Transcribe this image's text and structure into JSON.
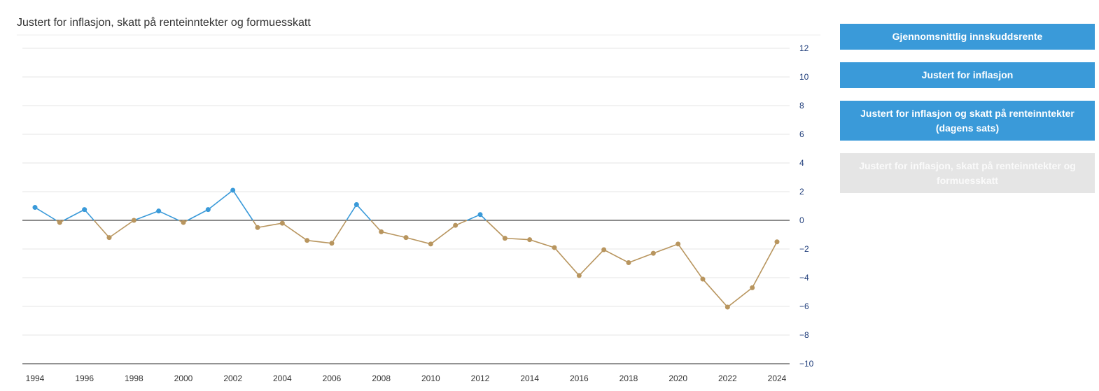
{
  "chart_title": "Justert for inflasjon, skatt på renteinntekter og formuesskatt",
  "buttons": [
    {
      "label": "Gjennomsnittlig innskuddsrente",
      "active": true
    },
    {
      "label": "Justert for inflasjon",
      "active": true
    },
    {
      "label": "Justert for inflasjon og skatt på renteinntekter (dagens sats)",
      "active": true
    },
    {
      "label": "Justert for inflasjon, skatt på renteinntekter og formuesskatt",
      "active": false
    }
  ],
  "colors": {
    "positive": "#3a9ad9",
    "negative": "#b8955e",
    "zero_line": "#666666",
    "grid": "#e6e6e6",
    "button_active": "#3a9ad9",
    "button_inactive": "#e5e5e5"
  },
  "chart_data": {
    "type": "line",
    "title": "Justert for inflasjon, skatt på renteinntekter og formuesskatt",
    "xlabel": "",
    "ylabel": "",
    "ylim": [
      -10,
      12
    ],
    "y_ticks": [
      12,
      10,
      8,
      6,
      4,
      2,
      0,
      -2,
      -4,
      -6,
      -8,
      -10
    ],
    "y_tick_labels": [
      "12",
      "10",
      "8",
      "6",
      "4",
      "2",
      "0",
      "−2",
      "−4",
      "−6",
      "−8",
      "−10"
    ],
    "y_axis_side": "right",
    "x_tick_labels": [
      "1994",
      "1996",
      "1998",
      "2000",
      "2002",
      "2004",
      "2006",
      "2008",
      "2010",
      "2012",
      "2014",
      "2016",
      "2018",
      "2020",
      "2022",
      "2024"
    ],
    "grid": true,
    "x": [
      1994,
      1995,
      1996,
      1997,
      1998,
      1999,
      2000,
      2001,
      2002,
      2003,
      2004,
      2005,
      2006,
      2007,
      2008,
      2009,
      2010,
      2011,
      2012,
      2013,
      2014,
      2015,
      2016,
      2017,
      2018,
      2019,
      2020,
      2021,
      2022,
      2023,
      2024
    ],
    "values": [
      0.9,
      -0.15,
      0.75,
      -1.2,
      0.0,
      0.65,
      -0.15,
      0.75,
      2.1,
      -0.5,
      -0.2,
      -1.4,
      -1.6,
      1.1,
      -0.8,
      -1.2,
      -1.65,
      -0.35,
      0.4,
      -1.25,
      -1.35,
      -1.9,
      -3.85,
      -2.05,
      -2.95,
      -2.3,
      -1.65,
      -4.1,
      -6.05,
      -4.7,
      -1.5
    ]
  }
}
